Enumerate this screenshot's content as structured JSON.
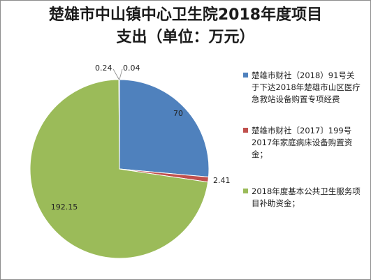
{
  "chart_data": {
    "type": "pie",
    "title_lines": [
      "楚雄市中山镇中心卫生院2018年度项目",
      "支出（单位：万元）"
    ],
    "slices": [
      {
        "value": 70,
        "label": "70",
        "color": "#4f81bd",
        "legend": "楚雄市财社（2018）91号关于下达2018年楚雄市山区医疗急救站设备购置专项经费"
      },
      {
        "value": 2.41,
        "label": "2.41",
        "color": "#c0504d",
        "legend": "楚雄市财社〔2017〕199号2017年家庭病床设备购置资金；"
      },
      {
        "value": 192.15,
        "label": "192.15",
        "color": "#9bbb59",
        "legend": "2018年度基本公共卫生服务项目补助资金；"
      },
      {
        "value": 0.24,
        "label": "0.24",
        "color": "#8064a2",
        "legend": ""
      },
      {
        "value": 0.04,
        "label": "0.04",
        "color": "#4bacc6",
        "legend": ""
      }
    ],
    "legend_position": "right"
  }
}
